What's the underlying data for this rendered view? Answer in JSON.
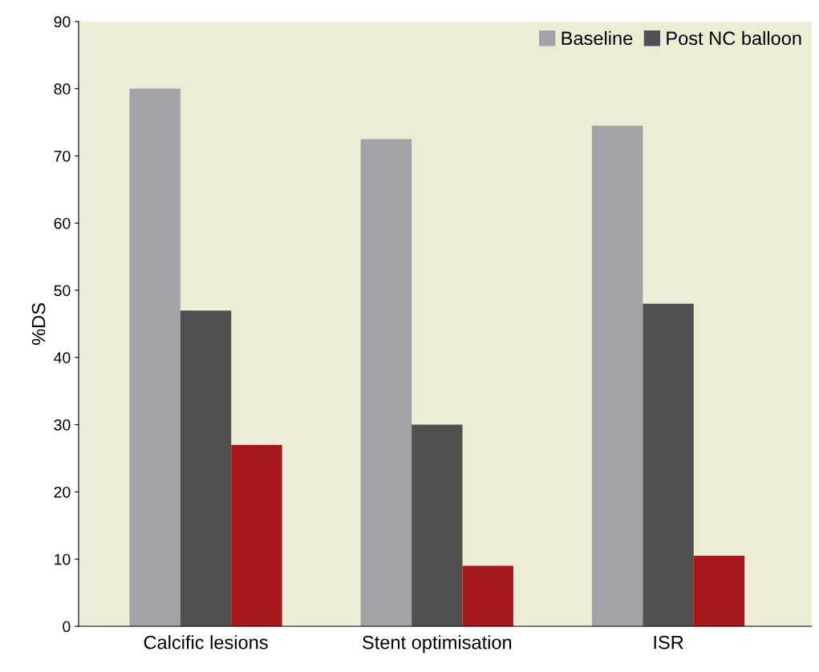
{
  "chart_data": {
    "type": "bar",
    "ylabel": "%DS",
    "categories": [
      "Calcific lesions",
      "Stent optimisation",
      "ISR"
    ],
    "series": [
      {
        "name": "Baseline",
        "color": "#a2a3a7",
        "values": [
          80,
          72.5,
          74.5
        ]
      },
      {
        "name": "Post NC balloon",
        "color": "#505153",
        "values": [
          47,
          30,
          48
        ]
      },
      {
        "color": "#a8191e",
        "values": [
          27,
          9,
          10.5
        ]
      }
    ],
    "ylim": [
      0,
      90
    ],
    "yticks": [
      0,
      10,
      20,
      30,
      40,
      50,
      60,
      70,
      80,
      90
    ],
    "grid": false,
    "legend": "top right"
  }
}
